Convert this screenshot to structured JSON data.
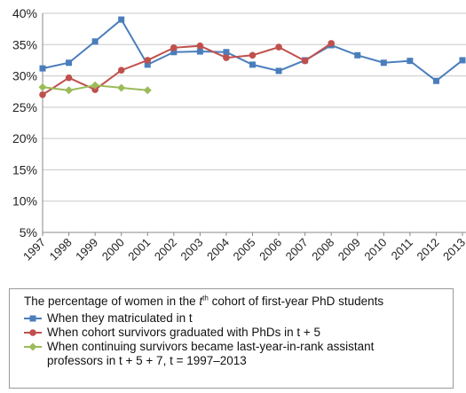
{
  "chart_data": {
    "type": "line",
    "categories": [
      "1997",
      "1998",
      "1999",
      "2000",
      "2001",
      "2002",
      "2003",
      "2004",
      "2005",
      "2006",
      "2007",
      "2008",
      "2009",
      "2010",
      "2011",
      "2012",
      "2013"
    ],
    "ylim": [
      5,
      40
    ],
    "yticks": [
      {
        "value": 5,
        "label": "5%"
      },
      {
        "value": 10,
        "label": "10%"
      },
      {
        "value": 15,
        "label": "15%"
      },
      {
        "value": 20,
        "label": "20%"
      },
      {
        "value": 25,
        "label": "25%"
      },
      {
        "value": 30,
        "label": "30%"
      },
      {
        "value": 35,
        "label": "35%"
      },
      {
        "value": 40,
        "label": "40%"
      }
    ],
    "grid": true,
    "legend_title": [
      "The percentage of women in the ",
      "t",
      "th",
      " cohort of first-year PhD students"
    ],
    "series": [
      {
        "name": "When they matriculated in t",
        "color": "#4a7ebb",
        "marker": "square",
        "values": [
          31.2,
          32.1,
          35.5,
          39.0,
          31.8,
          33.8,
          33.9,
          33.8,
          31.8,
          30.8,
          32.5,
          34.9,
          33.3,
          32.1,
          32.4,
          29.2,
          32.5
        ]
      },
      {
        "name": "When cohort survivors graduated with PhDs in t + 5",
        "color": "#c0504d",
        "marker": "circle",
        "values": [
          27.0,
          29.7,
          27.8,
          30.9,
          32.5,
          34.5,
          34.8,
          32.9,
          33.3,
          34.6,
          32.4,
          35.2,
          null,
          null,
          null,
          null,
          null
        ]
      },
      {
        "name": "When continuing survivors became last-year-in-rank assistant professors in t + 5 + 7, t = 1997–2013",
        "color": "#9bbb59",
        "marker": "diamond",
        "values": [
          28.2,
          27.7,
          28.5,
          28.1,
          27.7,
          null,
          null,
          null,
          null,
          null,
          null,
          null,
          null,
          null,
          null,
          null,
          null
        ]
      }
    ]
  }
}
